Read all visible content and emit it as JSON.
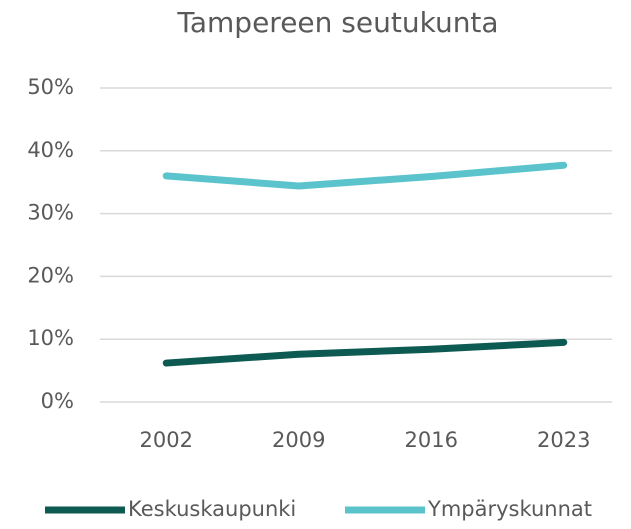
{
  "chart_data": {
    "type": "line",
    "title": "Tampereen seutukunta",
    "categories": [
      "2002",
      "2009",
      "2016",
      "2023"
    ],
    "series": [
      {
        "name": "Keskuskaupunki",
        "color": "#0d5a52",
        "values": [
          6.2,
          7.6,
          8.4,
          9.5
        ]
      },
      {
        "name": "Ympäryskunnat",
        "color": "#5bc3cc",
        "values": [
          36.0,
          34.4,
          35.9,
          37.7
        ]
      }
    ],
    "ylim": [
      0,
      50
    ],
    "yticks": [
      {
        "value": 0,
        "label": "0%"
      },
      {
        "value": 10,
        "label": "10%"
      },
      {
        "value": 20,
        "label": "20%"
      },
      {
        "value": 30,
        "label": "30%"
      },
      {
        "value": 40,
        "label": "40%"
      },
      {
        "value": 50,
        "label": "50%"
      }
    ],
    "grid": true,
    "legend": "bottom"
  }
}
